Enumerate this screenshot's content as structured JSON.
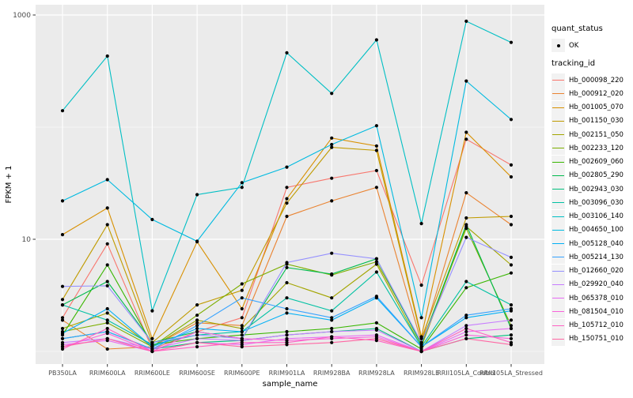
{
  "legend": {
    "quant_status_title": "quant_status",
    "quant_status_items": [
      {
        "label": "OK",
        "marker": "black-point"
      }
    ],
    "tracking_title": "tracking_id"
  },
  "chart_data": {
    "type": "line",
    "title": "",
    "xlabel": "sample_name",
    "ylabel": "FPKM + 1",
    "y_scale": "log10",
    "ylim": [
      0.8,
      1250
    ],
    "y_breaks": [
      {
        "value": 10,
        "label": "10"
      },
      {
        "value": 1000,
        "label": "1000"
      }
    ],
    "y_minor_breaks": [
      1,
      100
    ],
    "grid": true,
    "panel_bg": "#EBEBEB",
    "grid_color": "#FFFFFF",
    "point_color": "#000000",
    "tick_label_color": "#4D4D4D",
    "legend_position": "right",
    "categories": [
      "PB350LA",
      "RRIM600LA",
      "RRIM600LE",
      "RRIM600SE",
      "RRIM600PE",
      "RRIM901LA",
      "RRIM928BA",
      "RRIM928LA",
      "RRIM928LE",
      "RRII105LA_Control",
      "RRII105LA_Stressed"
    ],
    "series": [
      {
        "name": "Hb_000098_220",
        "color": "#F8766D",
        "values": [
          2.0,
          9.1,
          1.05,
          1.5,
          2.0,
          29,
          35,
          41,
          3.9,
          78,
          46
        ]
      },
      {
        "name": "Hb_000912_020",
        "color": "#EA8331",
        "values": [
          1.9,
          1.05,
          1.1,
          1.8,
          1.7,
          16,
          22,
          29,
          1.2,
          26,
          13.5
        ]
      },
      {
        "name": "Hb_001005_070",
        "color": "#D89000",
        "values": [
          11,
          19,
          1.3,
          9.5,
          2.4,
          23,
          80,
          68,
          1.35,
          90,
          36
        ]
      },
      {
        "name": "Hb_001150_030",
        "color": "#C09B00",
        "values": [
          2.9,
          13.5,
          1.2,
          2.6,
          3.5,
          21,
          66,
          62,
          1.3,
          15.5,
          16
        ]
      },
      {
        "name": "Hb_002151_050",
        "color": "#A3A500",
        "values": [
          1.6,
          2.2,
          1.1,
          1.9,
          1.6,
          4.1,
          3.0,
          6.0,
          1.1,
          13,
          5.9
        ]
      },
      {
        "name": "Hb_002233_120",
        "color": "#7CAE00",
        "values": [
          1.5,
          1.8,
          1.1,
          2.1,
          4.0,
          6.0,
          4.8,
          6.3,
          1.2,
          12.5,
          1.7
        ]
      },
      {
        "name": "Hb_002609_060",
        "color": "#39B600",
        "values": [
          1.4,
          5.9,
          1.15,
          1.3,
          1.4,
          1.5,
          1.6,
          1.8,
          1.05,
          3.7,
          5.0
        ]
      },
      {
        "name": "Hb_002805_290",
        "color": "#00BB4E",
        "values": [
          2.6,
          4.2,
          1.2,
          1.5,
          1.3,
          5.6,
          4.9,
          6.7,
          1.15,
          13.5,
          1.6
        ]
      },
      {
        "name": "Hb_002943_030",
        "color": "#00BF7D",
        "values": [
          1.3,
          1.5,
          1.05,
          1.2,
          1.25,
          1.4,
          1.5,
          1.6,
          1.0,
          1.3,
          1.4
        ]
      },
      {
        "name": "Hb_003096_030",
        "color": "#00C1A3",
        "values": [
          2.6,
          1.9,
          1.15,
          1.4,
          1.5,
          3.0,
          2.3,
          5.1,
          1.1,
          4.2,
          2.6
        ]
      },
      {
        "name": "Hb_003106_140",
        "color": "#00BFC4",
        "values": [
          140,
          430,
          2.3,
          25,
          29,
          460,
          200,
          600,
          13.8,
          880,
          570
        ]
      },
      {
        "name": "Hb_004650_100",
        "color": "#00BAE0",
        "values": [
          22,
          34,
          15,
          9.6,
          32,
          44,
          70,
          103,
          2.0,
          258,
          117
        ]
      },
      {
        "name": "Hb_005128_040",
        "color": "#00B0F6",
        "values": [
          1.45,
          2.4,
          1.1,
          1.6,
          1.5,
          2.2,
          1.9,
          3.0,
          1.1,
          2.0,
          2.3
        ]
      },
      {
        "name": "Hb_005214_130",
        "color": "#35A2FF",
        "values": [
          1.3,
          1.5,
          1.05,
          1.7,
          3.0,
          2.4,
          2.0,
          3.1,
          1.1,
          2.1,
          2.4
        ]
      },
      {
        "name": "Hb_012660_020",
        "color": "#9590FF",
        "values": [
          3.8,
          3.85,
          1.2,
          1.4,
          1.3,
          6.2,
          7.5,
          6.7,
          1.2,
          10.4,
          6.9
        ]
      },
      {
        "name": "Hb_029920_040",
        "color": "#C77CFF",
        "values": [
          1.2,
          1.3,
          1.05,
          1.3,
          1.25,
          1.4,
          1.5,
          1.55,
          1.0,
          1.7,
          1.9
        ]
      },
      {
        "name": "Hb_065378_010",
        "color": "#E76BF3",
        "values": [
          1.15,
          1.25,
          1.0,
          1.2,
          1.15,
          1.3,
          1.35,
          1.4,
          1.0,
          1.5,
          1.6
        ]
      },
      {
        "name": "Hb_081504_010",
        "color": "#FA62DB",
        "values": [
          1.1,
          1.45,
          1.0,
          1.5,
          1.3,
          1.25,
          1.3,
          1.35,
          1.0,
          1.4,
          1.3
        ]
      },
      {
        "name": "Hb_105712_010",
        "color": "#FF61C3",
        "values": [
          1.05,
          1.6,
          1.0,
          1.1,
          1.2,
          1.2,
          1.35,
          1.25,
          1.0,
          1.6,
          1.2
        ]
      },
      {
        "name": "Hb_150751_010",
        "color": "#FF67A4",
        "values": [
          1.1,
          1.3,
          1.0,
          1.2,
          1.1,
          1.15,
          1.2,
          1.3,
          1.0,
          1.3,
          1.15
        ]
      }
    ]
  }
}
